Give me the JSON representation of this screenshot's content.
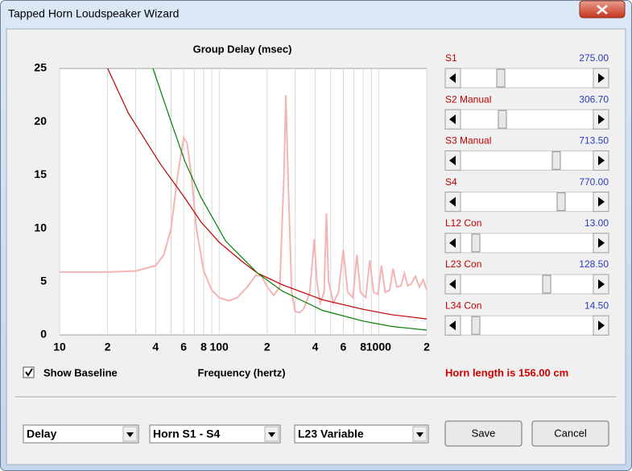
{
  "window_title": "Tapped Horn Loudspeaker Wizard",
  "chart_data": {
    "type": "line",
    "title": "Group Delay (msec)",
    "x_label": "Frequency (hertz)",
    "x_scale": "log",
    "xlim": [
      10,
      2000
    ],
    "ylim": [
      0,
      25
    ],
    "xticks": [
      10,
      {
        "value": 20,
        "label": "2"
      },
      {
        "value": 40,
        "label": "4"
      },
      {
        "value": 60,
        "label": "6"
      },
      {
        "value": 80,
        "label": "8"
      },
      100,
      {
        "value": 200,
        "label": "2"
      },
      {
        "value": 400,
        "label": "4"
      },
      {
        "value": 600,
        "label": "6"
      },
      {
        "value": 800,
        "label": "8"
      },
      1000,
      {
        "value": 2000,
        "label": "2"
      }
    ],
    "x_minor_ticks": [
      30,
      50,
      70,
      90,
      300,
      500,
      700,
      900
    ],
    "yticks": [
      0,
      5,
      10,
      15,
      20,
      25
    ],
    "grid": "x",
    "series": [
      {
        "color": "#f4b4b4",
        "x": [
          10,
          20,
          30,
          40,
          45,
          50,
          55,
          60,
          63,
          67,
          72,
          80,
          90,
          100,
          115,
          130,
          150,
          170,
          185,
          200,
          220,
          240,
          255,
          262,
          270,
          285,
          300,
          320,
          340,
          370,
          395,
          410,
          430,
          455,
          470,
          485,
          520,
          560,
          600,
          640,
          690,
          730,
          770,
          830,
          880,
          930,
          990,
          1040,
          1100,
          1170,
          1230,
          1300,
          1380,
          1450,
          1520,
          1600,
          1700,
          1800,
          1900,
          2000
        ],
        "values": [
          5.9,
          5.9,
          6.0,
          6.5,
          7.5,
          10,
          15,
          18.5,
          18,
          15,
          10,
          6,
          4.2,
          3.5,
          3.2,
          3.5,
          4.5,
          5.6,
          5.5,
          4.5,
          3.7,
          4.5,
          15,
          22.5,
          15,
          4,
          2.2,
          2.1,
          2.5,
          4,
          9,
          5,
          3,
          4,
          11.4,
          5,
          3,
          4,
          8,
          4,
          3.5,
          7.5,
          4,
          3.5,
          7,
          4,
          3.8,
          6.5,
          4,
          4.2,
          6.2,
          4.5,
          4.6,
          5.8,
          4.6,
          4.8,
          5.5,
          4.5,
          5.2,
          4.2
        ]
      },
      {
        "color": "#c00000",
        "x": [
          20,
          27,
          43,
          60,
          77,
          100,
          139,
          174,
          250,
          444,
          800,
          1200,
          2000
        ],
        "values": [
          25,
          20.8,
          16,
          13,
          10.6,
          8.7,
          6.9,
          5.8,
          4.7,
          3.3,
          2.4,
          1.9,
          1.5
        ]
      },
      {
        "color": "#008000",
        "x": [
          38.5,
          50,
          61,
          77,
          110,
          174,
          250,
          444,
          800,
          1200,
          2000
        ],
        "values": [
          25,
          20,
          16.3,
          12.9,
          8.8,
          5.8,
          4.1,
          2.3,
          1.3,
          0.8,
          0.45
        ]
      }
    ]
  },
  "sliders": [
    {
      "label": "S1",
      "value": "275.00"
    },
    {
      "label": "S2 Manual",
      "value": "306.70"
    },
    {
      "label": "S3 Manual",
      "value": "713.50"
    },
    {
      "label": "S4",
      "value": "770.00"
    },
    {
      "label": "L12 Con",
      "value": "13.00"
    },
    {
      "label": "L23 Con",
      "value": "128.50"
    },
    {
      "label": "L34 Con",
      "value": "14.50"
    }
  ],
  "checkbox": {
    "label": "Show Baseline",
    "checked": true
  },
  "status": "Horn length is 156.00 cm",
  "dropdowns": [
    "Delay",
    "Horn S1 - S4",
    "L23 Variable"
  ],
  "buttons": [
    "Save",
    "Cancel"
  ]
}
